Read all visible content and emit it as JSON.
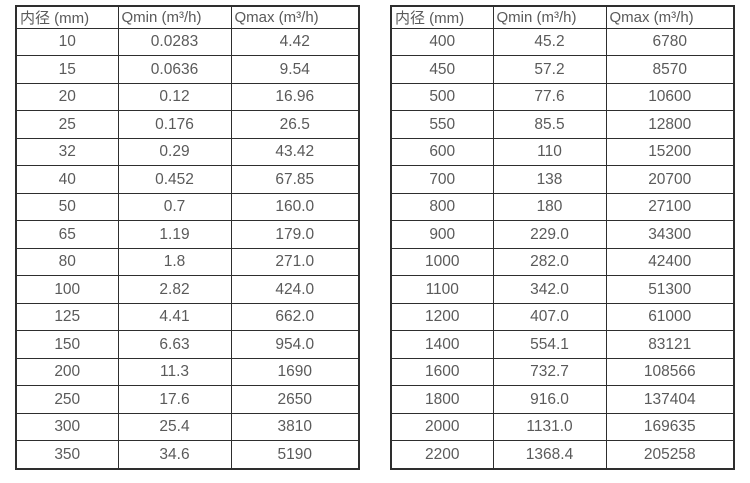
{
  "page": {
    "background": "#ffffff",
    "text_color": "#5a5a5a",
    "border_color": "#2e2e2e"
  },
  "tables": [
    {
      "id": "small-diameters",
      "headers": [
        "内径 (mm)",
        "Qmin (m³/h)",
        "Qmax (m³/h)"
      ],
      "rows": [
        [
          "10",
          "0.0283",
          "4.42"
        ],
        [
          "15",
          "0.0636",
          "9.54"
        ],
        [
          "20",
          "0.12",
          "16.96"
        ],
        [
          "25",
          "0.176",
          "26.5"
        ],
        [
          "32",
          "0.29",
          "43.42"
        ],
        [
          "40",
          "0.452",
          "67.85"
        ],
        [
          "50",
          "0.7",
          "160.0"
        ],
        [
          "65",
          "1.19",
          "179.0"
        ],
        [
          "80",
          "1.8",
          "271.0"
        ],
        [
          "100",
          "2.82",
          "424.0"
        ],
        [
          "125",
          "4.41",
          "662.0"
        ],
        [
          "150",
          "6.63",
          "954.0"
        ],
        [
          "200",
          "11.3",
          "1690"
        ],
        [
          "250",
          "17.6",
          "2650"
        ],
        [
          "300",
          "25.4",
          "3810"
        ],
        [
          "350",
          "34.6",
          "5190"
        ]
      ]
    },
    {
      "id": "large-diameters",
      "headers": [
        "内径 (mm)",
        "Qmin (m³/h)",
        "Qmax (m³/h)"
      ],
      "rows": [
        [
          "400",
          "45.2",
          "6780"
        ],
        [
          "450",
          "57.2",
          "8570"
        ],
        [
          "500",
          "77.6",
          "10600"
        ],
        [
          "550",
          "85.5",
          "12800"
        ],
        [
          "600",
          "110",
          "15200"
        ],
        [
          "700",
          "138",
          "20700"
        ],
        [
          "800",
          "180",
          "27100"
        ],
        [
          "900",
          "229.0",
          "34300"
        ],
        [
          "1000",
          "282.0",
          "42400"
        ],
        [
          "1100",
          "342.0",
          "51300"
        ],
        [
          "1200",
          "407.0",
          "61000"
        ],
        [
          "1400",
          "554.1",
          "83121"
        ],
        [
          "1600",
          "732.7",
          "108566"
        ],
        [
          "1800",
          "916.0",
          "137404"
        ],
        [
          "2000",
          "1131.0",
          "169635"
        ],
        [
          "2200",
          "1368.4",
          "205258"
        ]
      ]
    }
  ]
}
